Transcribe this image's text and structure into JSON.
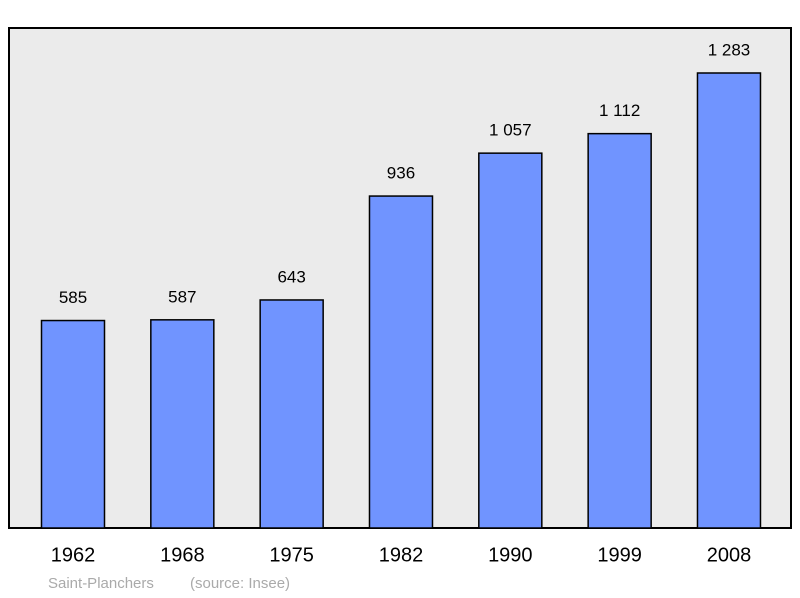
{
  "chart_data": {
    "type": "bar",
    "categories": [
      "1962",
      "1968",
      "1975",
      "1982",
      "1990",
      "1999",
      "2008"
    ],
    "values": [
      585,
      587,
      643,
      936,
      1057,
      1112,
      1283
    ],
    "value_labels": [
      "585",
      "587",
      "643",
      "936",
      "1 057",
      "1 112",
      "1 283"
    ],
    "color": "#7094ff",
    "caption": "Saint-Planchers",
    "source": "(source: Insee)"
  }
}
